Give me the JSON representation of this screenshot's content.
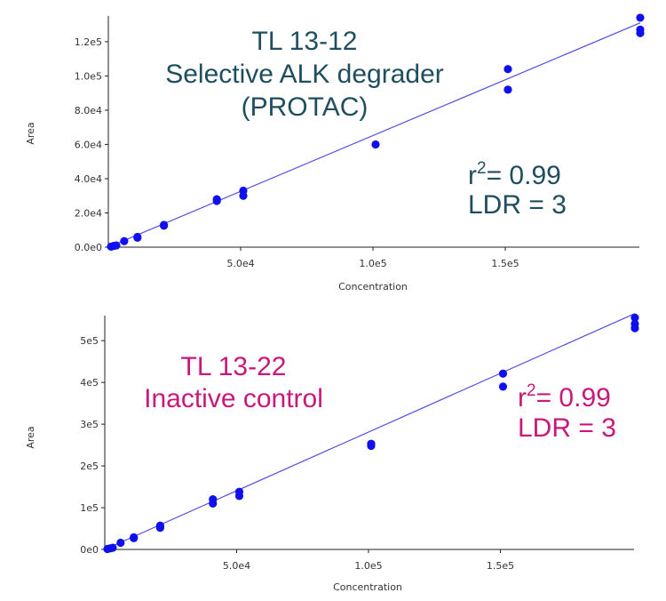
{
  "chart_data": [
    {
      "type": "scatter",
      "xlabel": "Concentration",
      "ylabel": "Area",
      "xlim": [
        0,
        200000
      ],
      "ylim": [
        0,
        135000
      ],
      "x_ticks": [
        {
          "value": 50000,
          "label": "5.0e4"
        },
        {
          "value": 100000,
          "label": "1.0e5"
        },
        {
          "value": 150000,
          "label": "1.5e5"
        }
      ],
      "y_ticks": [
        {
          "value": 0,
          "label": "0.0e0"
        },
        {
          "value": 20000,
          "label": "2.0e4"
        },
        {
          "value": 40000,
          "label": "4.0e4"
        },
        {
          "value": 60000,
          "label": "6.0e4"
        },
        {
          "value": 80000,
          "label": "8.0e4"
        },
        {
          "value": 100000,
          "label": "1.0e5"
        },
        {
          "value": 120000,
          "label": "1.2e5"
        }
      ],
      "points": [
        {
          "x": 1000,
          "y": 300
        },
        {
          "x": 2000,
          "y": 700
        },
        {
          "x": 3000,
          "y": 1000
        },
        {
          "x": 6000,
          "y": 3500
        },
        {
          "x": 11000,
          "y": 6000
        },
        {
          "x": 11000,
          "y": 5500
        },
        {
          "x": 21000,
          "y": 12500
        },
        {
          "x": 21000,
          "y": 13000
        },
        {
          "x": 41000,
          "y": 27000
        },
        {
          "x": 41000,
          "y": 28000
        },
        {
          "x": 51000,
          "y": 30000
        },
        {
          "x": 51000,
          "y": 33000
        },
        {
          "x": 101000,
          "y": 60000
        },
        {
          "x": 151000,
          "y": 92000
        },
        {
          "x": 151000,
          "y": 104000
        },
        {
          "x": 201000,
          "y": 134000
        },
        {
          "x": 201000,
          "y": 127000
        },
        {
          "x": 201000,
          "y": 125000
        }
      ],
      "fit_line": {
        "x": [
          0,
          201000
        ],
        "y": [
          0,
          131000
        ]
      },
      "colors": {
        "points": "#1010ee",
        "line": "#4f4fe0",
        "annotation": "#1f4e5f"
      },
      "annotation": {
        "title_lines": [
          "TL 13-12",
          "Selective ALK degrader",
          "(PROTAC)"
        ],
        "r_squared_prefix": "r",
        "r_squared_sup": "2",
        "r_squared_value": "= 0.99",
        "ldr": "LDR = 3"
      }
    },
    {
      "type": "scatter",
      "xlabel": "Concentration",
      "ylabel": "Area",
      "xlim": [
        0,
        200000
      ],
      "ylim": [
        0,
        560000
      ],
      "x_ticks": [
        {
          "value": 50000,
          "label": "5.0e4"
        },
        {
          "value": 100000,
          "label": "1.0e5"
        },
        {
          "value": 150000,
          "label": "1.5e5"
        }
      ],
      "y_ticks": [
        {
          "value": 0,
          "label": "0e0"
        },
        {
          "value": 100000,
          "label": "1e5"
        },
        {
          "value": 200000,
          "label": "2e5"
        },
        {
          "value": 300000,
          "label": "3e5"
        },
        {
          "value": 400000,
          "label": "4e5"
        },
        {
          "value": 500000,
          "label": "5e5"
        }
      ],
      "points": [
        {
          "x": 1000,
          "y": 1000
        },
        {
          "x": 2000,
          "y": 2500
        },
        {
          "x": 3000,
          "y": 4000
        },
        {
          "x": 6000,
          "y": 16000
        },
        {
          "x": 11000,
          "y": 27000
        },
        {
          "x": 11000,
          "y": 29000
        },
        {
          "x": 21000,
          "y": 52000
        },
        {
          "x": 21000,
          "y": 57000
        },
        {
          "x": 41000,
          "y": 110000
        },
        {
          "x": 41000,
          "y": 120000
        },
        {
          "x": 51000,
          "y": 128000
        },
        {
          "x": 51000,
          "y": 138000
        },
        {
          "x": 101000,
          "y": 248000
        },
        {
          "x": 101000,
          "y": 253000
        },
        {
          "x": 151000,
          "y": 390000
        },
        {
          "x": 151000,
          "y": 421000
        },
        {
          "x": 201000,
          "y": 530000
        },
        {
          "x": 201000,
          "y": 540000
        },
        {
          "x": 201000,
          "y": 555000
        }
      ],
      "fit_line": {
        "x": [
          0,
          201000
        ],
        "y": [
          0,
          565000
        ]
      },
      "colors": {
        "points": "#1010ee",
        "line": "#4f4fe0",
        "annotation": "#c8187a"
      },
      "annotation": {
        "title_lines": [
          "TL 13-22",
          "Inactive control"
        ],
        "r_squared_prefix": "r",
        "r_squared_sup": "2",
        "r_squared_value": "= 0.99",
        "ldr": "LDR = 3"
      }
    }
  ]
}
